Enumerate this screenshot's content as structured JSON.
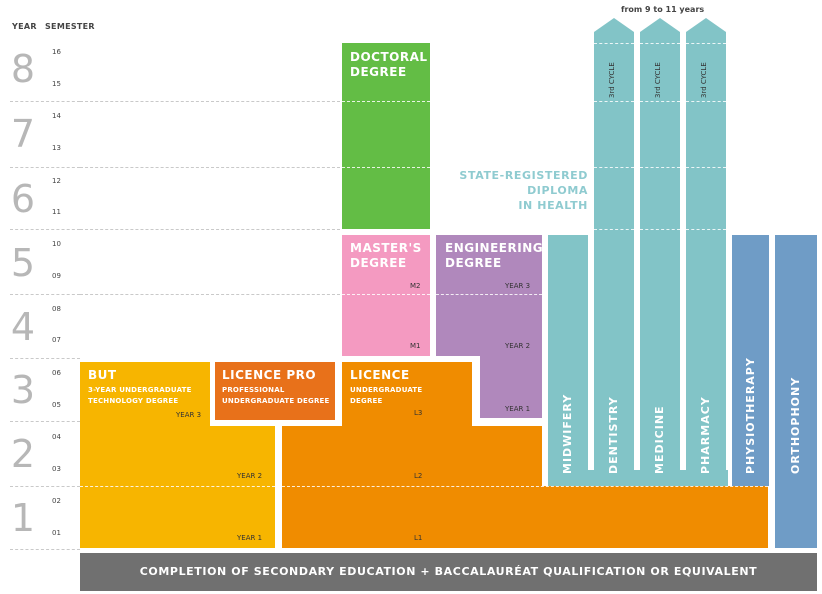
{
  "header": {
    "year_label": "YEAR",
    "semester_label": "SEMESTER",
    "duration_note": "from 9 to 11 years"
  },
  "years": [
    "8",
    "7",
    "6",
    "5",
    "4",
    "3",
    "2",
    "1"
  ],
  "semesters": [
    "16",
    "15",
    "14",
    "13",
    "12",
    "11",
    "10",
    "09",
    "08",
    "07",
    "06",
    "05",
    "04",
    "03",
    "02",
    "01"
  ],
  "blocks": {
    "doctoral": {
      "title_1": "DOCTORAL",
      "title_2": "DEGREE"
    },
    "masters": {
      "title_1": "MASTER'S",
      "title_2": "DEGREE",
      "m2": "M2",
      "m1": "M1"
    },
    "engineering": {
      "title_1": "ENGINEERING",
      "title_2": "DEGREE",
      "year3": "YEAR 3",
      "year2": "YEAR 2",
      "year1": "YEAR 1"
    },
    "but": {
      "title": "BUT",
      "sub_1": "3-YEAR UNDERGRADUATE",
      "sub_2": "TECHNOLOGY DEGREE",
      "year3": "YEAR 3",
      "year2": "YEAR 2",
      "year1": "YEAR 1"
    },
    "licence_pro": {
      "title": "LICENCE PRO",
      "sub_1": "PROFESSIONAL",
      "sub_2": "UNDERGRADUATE DEGREE"
    },
    "licence": {
      "title": "LICENCE",
      "sub_1": "UNDERGRADUATE",
      "sub_2": "DEGREE",
      "l3": "L3",
      "l2": "L2",
      "l1": "L1"
    },
    "health": {
      "label_1": "STATE-REGISTERED",
      "label_2": "DIPLOMA",
      "label_3": "IN HEALTH"
    },
    "midwifery": "MIDWIFERY",
    "dentistry": "DENTISTRY",
    "medicine": "MEDICINE",
    "pharmacy": "PHARMACY",
    "cycle": "3rd CYCLE",
    "physiotherapy": "PHYSIOTHERAPY",
    "orthophony": "ORTHOPHONY"
  },
  "footer": "COMPLETION OF SECONDARY EDUCATION + BACCALAURÉAT QUALIFICATION OR EQUIVALENT",
  "colors": {
    "yellow": "#f7b500",
    "orange_dark": "#e8711a",
    "orange": "#f08c00",
    "pink": "#f49ac1",
    "purple": "#b088bc",
    "green": "#63bd45",
    "teal": "#82c4c7",
    "blue": "#6f9cc6",
    "grey": "#707070",
    "year_grey": "#b7b7b7"
  }
}
